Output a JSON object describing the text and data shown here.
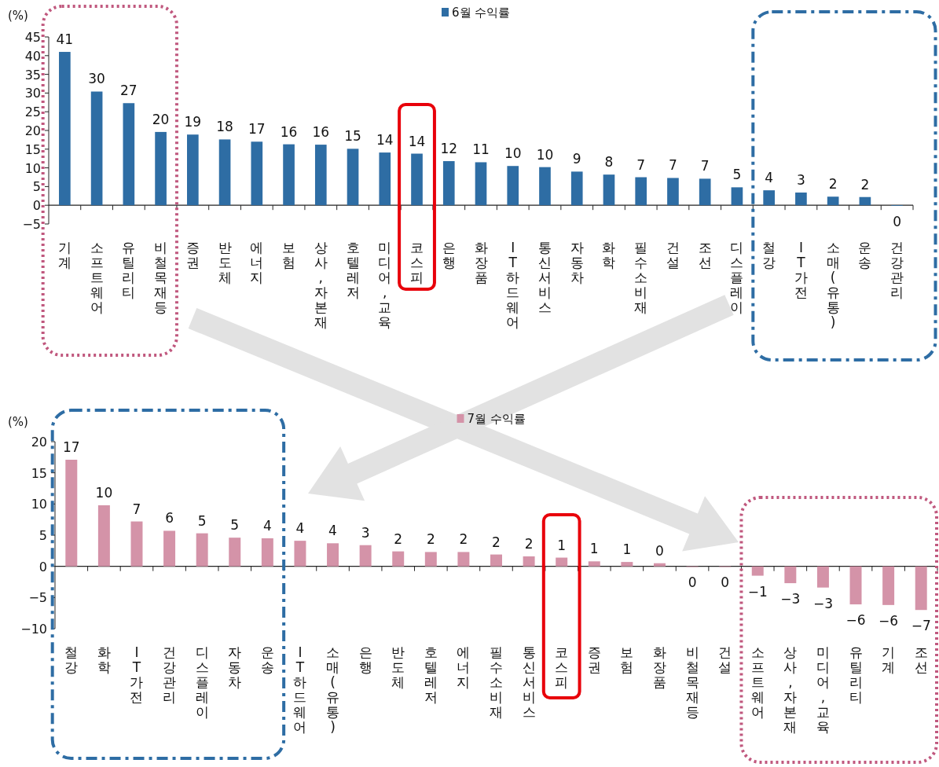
{
  "chart_data": [
    {
      "type": "bar",
      "ylabel": "(%)",
      "legend": "top",
      "categories": [
        "기계",
        "소프트웨어",
        "유틸리티",
        "비철목재등",
        "증권",
        "반도체",
        "에너지",
        "보험",
        "상사,자본재",
        "호텔레저",
        "미디어,교육",
        "코스피",
        "은행",
        "화장품",
        "IT하드웨어",
        "통신서비스",
        "자동차",
        "화학",
        "필수소비재",
        "건설",
        "조선",
        "디스플레이",
        "철강",
        "IT가전",
        "소매(유통)",
        "운송",
        "건강관리"
      ],
      "series": [
        {
          "name": "6월 수익률",
          "color": "#2e6da4",
          "values": [
            41.0,
            30.4,
            27.3,
            19.6,
            18.9,
            17.6,
            17.0,
            16.3,
            16.2,
            15.1,
            14.1,
            13.8,
            11.8,
            11.5,
            10.5,
            10.2,
            9.0,
            8.2,
            7.5,
            7.3,
            7.1,
            4.8,
            4.0,
            3.4,
            2.3,
            2.2,
            -0.1
          ],
          "value_labels": [
            "41",
            "30",
            "27",
            "20",
            "19",
            "18",
            "17",
            "16",
            "16",
            "15",
            "14",
            "14",
            "12",
            "11",
            "10",
            "10",
            "9",
            "8",
            "7",
            "7",
            "7",
            "5",
            "4",
            "3",
            "2",
            "2",
            "0"
          ]
        }
      ],
      "ylim": [
        -5,
        45
      ],
      "yticks": [
        -5,
        0,
        5,
        10,
        15,
        20,
        25,
        30,
        35,
        40,
        45
      ]
    },
    {
      "type": "bar",
      "ylabel": "(%)",
      "legend": "top",
      "categories": [
        "철강",
        "화학",
        "IT가전",
        "건강관리",
        "디스플레이",
        "자동차",
        "운송",
        "IT하드웨어",
        "소매(유통)",
        "은행",
        "반도체",
        "호텔레저",
        "에너지",
        "필수소비재",
        "통신서비스",
        "코스피",
        "증권",
        "보험",
        "화장품",
        "비철목재등",
        "건설",
        "소프트웨어",
        "상사,자본재",
        "미디어,교육",
        "유틸리티",
        "기계",
        "조선"
      ],
      "series": [
        {
          "name": "7월 수익률",
          "color": "#d493a8",
          "values": [
            17.1,
            9.8,
            7.2,
            5.7,
            5.3,
            4.6,
            4.5,
            4.1,
            3.7,
            3.4,
            2.4,
            2.3,
            2.3,
            1.9,
            1.6,
            1.4,
            0.8,
            0.7,
            0.5,
            -0.1,
            -0.1,
            -1.5,
            -2.7,
            -3.4,
            -6.1,
            -6.2,
            -7.0
          ],
          "value_labels": [
            "17",
            "10",
            "7",
            "6",
            "5",
            "5",
            "4",
            "4",
            "4",
            "3",
            "2",
            "2",
            "2",
            "2",
            "2",
            "1",
            "1",
            "1",
            "0",
            "0",
            "0",
            "−1",
            "−3",
            "−3",
            "−6",
            "−6",
            "−7"
          ]
        }
      ],
      "ylim": [
        -10,
        20
      ],
      "yticks": [
        -10,
        -5,
        0,
        5,
        10,
        15,
        20
      ]
    }
  ]
}
